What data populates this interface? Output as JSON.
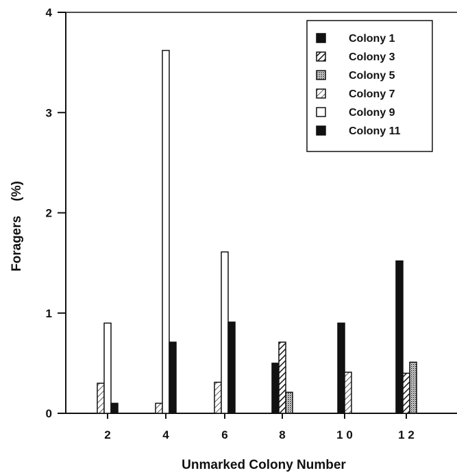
{
  "chart_data": {
    "type": "bar",
    "xlabel": "Unmarked Colony Number",
    "ylabel": "Foragers    (%)",
    "ylim": [
      0,
      4
    ],
    "y_ticks": [
      "0",
      "1",
      "2",
      "3",
      "4"
    ],
    "categories": [
      "2",
      "4",
      "6",
      "8",
      "1 0",
      "1 2"
    ],
    "legend_position": "top-right",
    "series": [
      {
        "name": "Colony 1",
        "pattern": "solid",
        "values": [
          0,
          0,
          0,
          0.5,
          0.9,
          1.52
        ]
      },
      {
        "name": "Colony 3",
        "pattern": "hatch",
        "values": [
          0,
          0,
          0,
          0.71,
          0,
          0.4
        ]
      },
      {
        "name": "Colony 5",
        "pattern": "stipple",
        "values": [
          0,
          0,
          0,
          0.21,
          0,
          0.51
        ]
      },
      {
        "name": "Colony 7",
        "pattern": "hatch-light",
        "values": [
          0.3,
          0.1,
          0.31,
          0,
          0.41,
          0
        ]
      },
      {
        "name": "Colony 9",
        "pattern": "open",
        "values": [
          0.9,
          3.62,
          1.61,
          0,
          0,
          0
        ]
      },
      {
        "name": "Colony 11",
        "pattern": "solid",
        "values": [
          0.1,
          0.71,
          0.91,
          0,
          0,
          0
        ]
      }
    ]
  }
}
